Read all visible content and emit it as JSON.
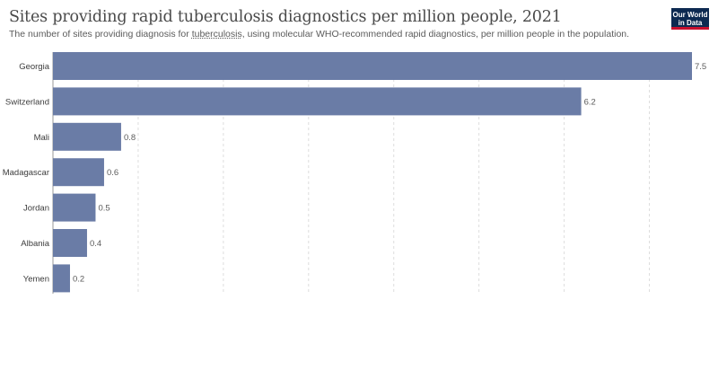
{
  "header": {
    "title": "Sites providing rapid tuberculosis diagnostics per million people, 2021",
    "subtitle_pre": "The number of sites providing diagnosis for ",
    "subtitle_link": "tuberculosis",
    "subtitle_post": ", using molecular WHO-recommended rapid diagnostics, per million people in the population."
  },
  "logo": {
    "line1": "Our World",
    "line2": "in Data"
  },
  "chart_data": {
    "type": "bar",
    "orientation": "horizontal",
    "categories": [
      "Georgia",
      "Switzerland",
      "Mali",
      "Madagascar",
      "Jordan",
      "Albania",
      "Yemen"
    ],
    "values": [
      7.5,
      6.2,
      0.8,
      0.6,
      0.5,
      0.4,
      0.2
    ],
    "xlim": [
      0,
      7.5
    ],
    "grid": true,
    "bar_color": "#6a7ca6"
  }
}
